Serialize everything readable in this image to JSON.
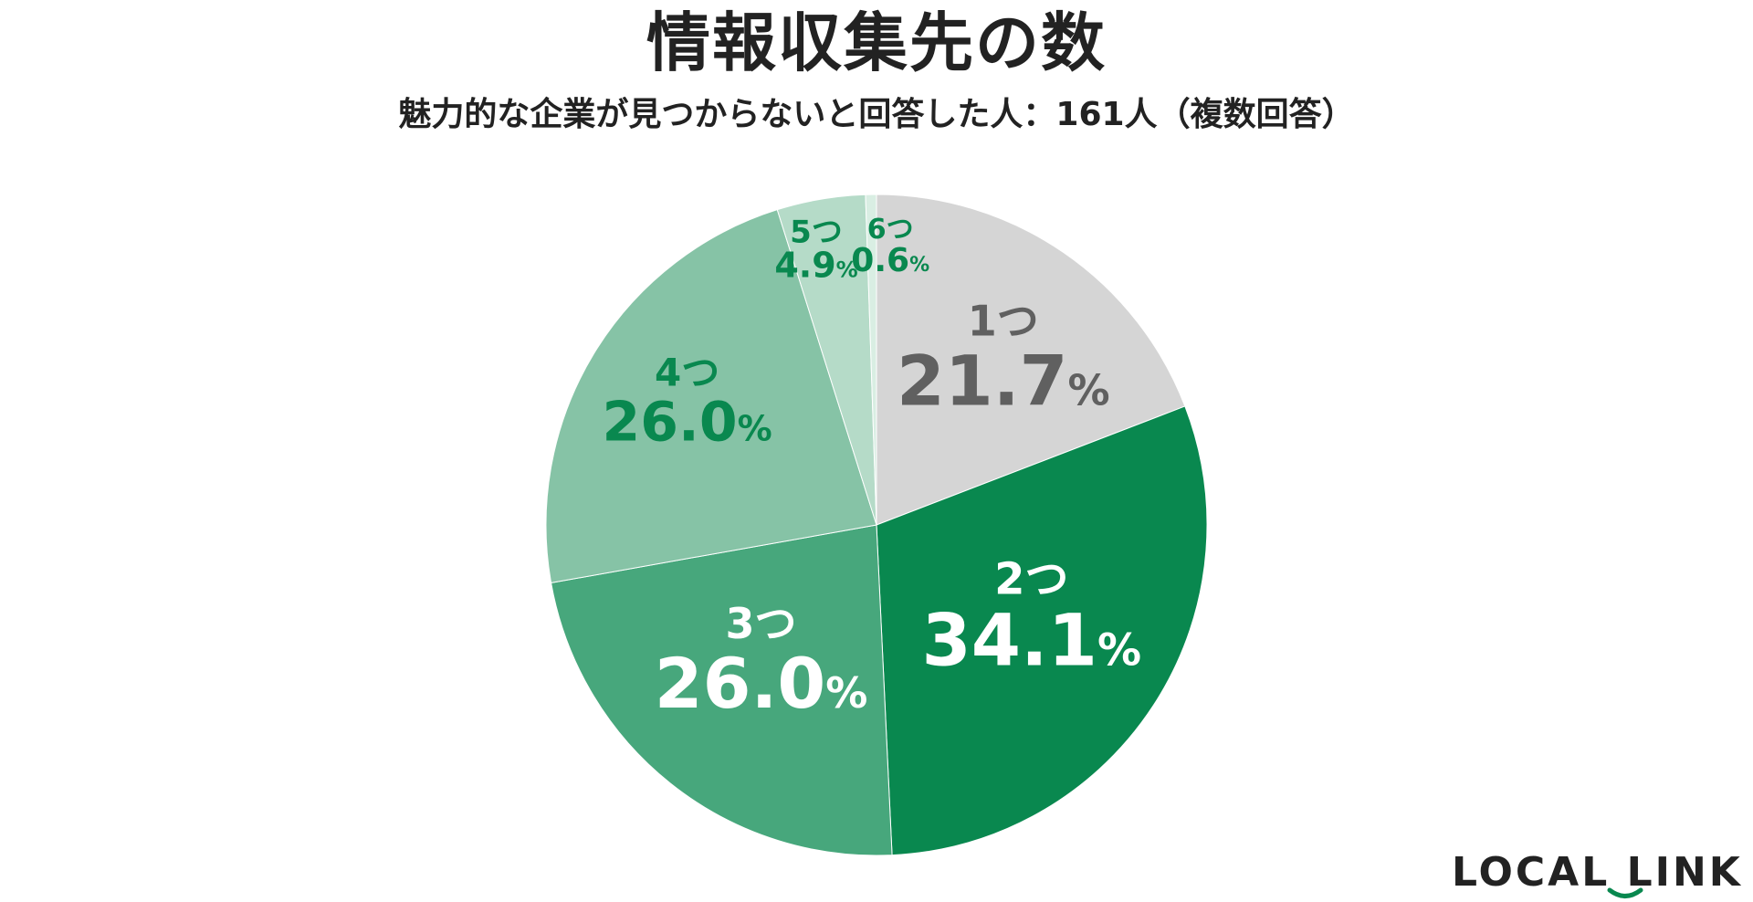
{
  "chart_data": {
    "type": "pie",
    "title": "情報収集先の数",
    "subtitle": "魅力的な企業が見つからないと回答した人：161人（複数回答）",
    "unit": "%",
    "categories": [
      "1つ",
      "2つ",
      "3つ",
      "4つ",
      "5つ",
      "6つ"
    ],
    "values": [
      21.7,
      34.1,
      26.0,
      26.0,
      4.9,
      0.6
    ],
    "value_labels": [
      "21.7",
      "34.1",
      "26.0",
      "26.0",
      "4.9",
      "0.6"
    ],
    "colors": [
      "#d5d5d5",
      "#09884f",
      "#47a77c",
      "#86c3a6",
      "#b5dbc8",
      "#d9eee3"
    ],
    "label_colors": [
      "#606060",
      "#ffffff",
      "#ffffff",
      "#09884f",
      "#09884f",
      "#09884f"
    ],
    "start_angle_deg": 0,
    "direction": "clockwise"
  },
  "brand": {
    "name": "LOCAL LINK",
    "accent_color": "#09884f"
  }
}
